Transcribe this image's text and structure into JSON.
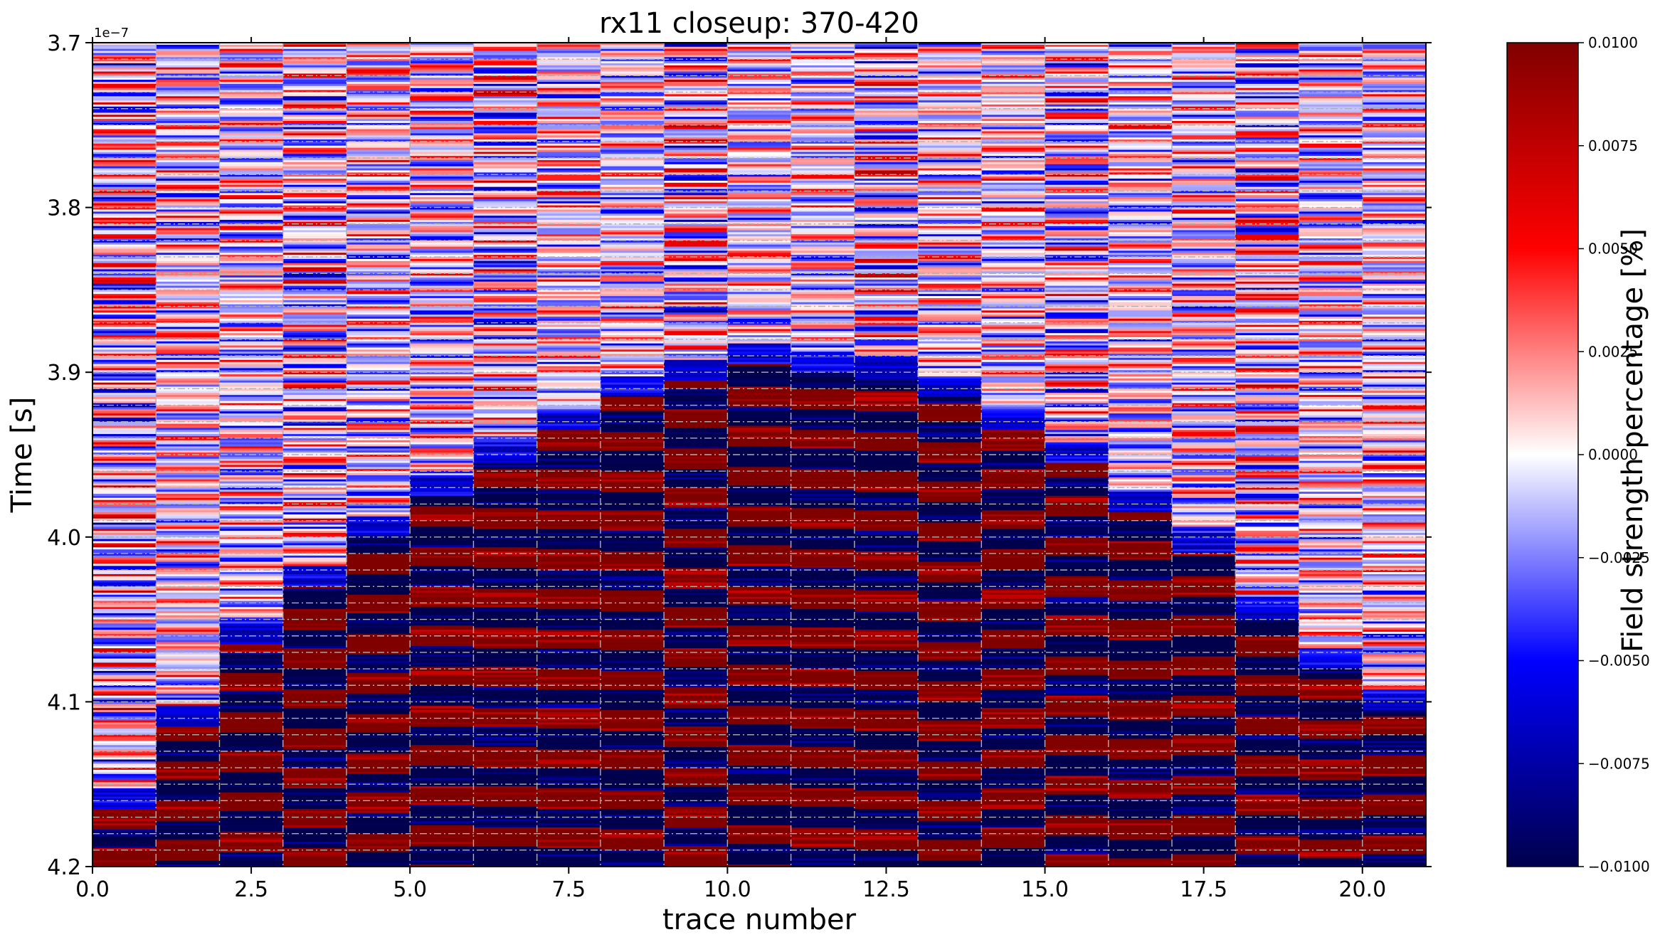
{
  "chart_data": {
    "type": "heatmap",
    "title": "rx11 closeup: 370-420",
    "xlabel": "trace number",
    "ylabel": "Time [s]",
    "y_offset_label": "1e−7",
    "colorbar_label": "Field strength percentage [%]",
    "colormap": "seismic",
    "colormap_colors": [
      "#00004c",
      "#0000ff",
      "#ffffff",
      "#ff0000",
      "#800000"
    ],
    "x_range": [
      0,
      21
    ],
    "y_range": [
      3.7,
      4.2
    ],
    "y_inverted": true,
    "clim": [
      -0.01,
      0.01
    ],
    "grid": true,
    "x_ticks": [
      0,
      2.5,
      5,
      7.5,
      10,
      12.5,
      15,
      17.5,
      20
    ],
    "x_tick_labels": [
      "0.0",
      "2.5",
      "5.0",
      "7.5",
      "10.0",
      "12.5",
      "15.0",
      "17.5",
      "20.0"
    ],
    "y_ticks": [
      3.7,
      3.8,
      3.9,
      4.0,
      4.1,
      4.2
    ],
    "y_tick_labels": [
      "3.7",
      "3.8",
      "3.9",
      "4.0",
      "4.1",
      "4.2"
    ],
    "colorbar_ticks": [
      -0.01,
      -0.0075,
      -0.005,
      -0.0025,
      0,
      0.0025,
      0.005,
      0.0075,
      0.01
    ],
    "colorbar_tick_labels": [
      "−0.0100",
      "−0.0075",
      "−0.0050",
      "−0.0025",
      "0.0000",
      "0.0025",
      "0.0050",
      "0.0075",
      "0.0100"
    ],
    "traces": [
      0,
      1,
      2,
      3,
      4,
      5,
      6,
      7,
      8,
      9,
      10,
      11,
      12,
      13,
      14,
      15,
      16,
      17,
      18,
      19,
      20
    ],
    "onset_time": [
      4.165,
      4.115,
      4.065,
      4.03,
      4.0,
      3.975,
      3.955,
      3.935,
      3.915,
      3.905,
      3.895,
      3.9,
      3.905,
      3.915,
      3.935,
      3.955,
      3.985,
      4.01,
      4.05,
      4.08,
      4.105
    ]
  }
}
